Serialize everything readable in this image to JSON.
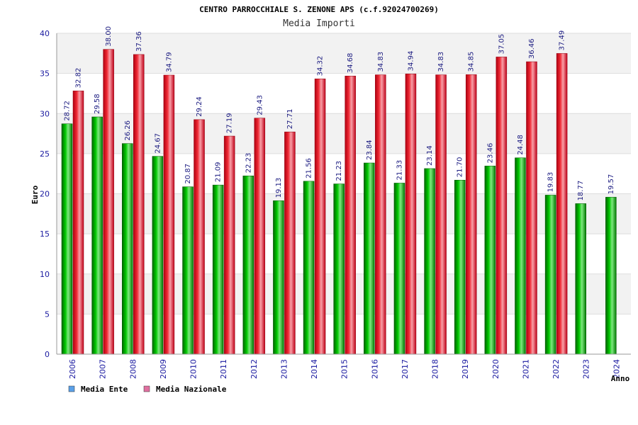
{
  "chart_data": {
    "type": "bar",
    "title": "CENTRO PARROCCHIALE S. ZENONE APS (c.f.92024700269)",
    "subtitle": "Media Importi",
    "xlabel": "Anno",
    "ylabel": "Euro",
    "ylim": [
      0,
      40
    ],
    "yticks": [
      0,
      5,
      10,
      15,
      20,
      25,
      30,
      35,
      40
    ],
    "grid": true,
    "legend_position": "bottom-left",
    "categories": [
      "2006",
      "2007",
      "2008",
      "2009",
      "2010",
      "2011",
      "2012",
      "2013",
      "2014",
      "2015",
      "2016",
      "2017",
      "2018",
      "2019",
      "2020",
      "2021",
      "2022",
      "2023",
      "2024"
    ],
    "series": [
      {
        "name": "Media Ente",
        "color": "#00aa00",
        "legend_color": "#5aa0e8",
        "values": [
          28.72,
          29.58,
          26.26,
          24.67,
          20.87,
          21.09,
          22.23,
          19.13,
          21.56,
          21.23,
          23.84,
          21.33,
          23.14,
          21.7,
          23.46,
          24.48,
          19.83,
          18.77,
          19.57
        ],
        "labels": [
          "28.72",
          "29.58",
          "26.26",
          "24.67",
          "20.87",
          "21.09",
          "22.23",
          "19.13",
          "21.56",
          "21.23",
          "23.84",
          "21.33",
          "23.14",
          "21.70",
          "23.46",
          "24.48",
          "19.83",
          "18.77",
          "19.57"
        ]
      },
      {
        "name": "Media Nazionale",
        "color": "#e8202a",
        "legend_color": "#e070a0",
        "values": [
          32.82,
          38.0,
          37.36,
          34.79,
          29.24,
          27.19,
          29.43,
          27.71,
          34.32,
          34.68,
          34.83,
          34.94,
          34.83,
          34.85,
          37.05,
          36.46,
          37.49,
          null,
          null
        ],
        "labels": [
          "32.82",
          "38.00",
          "37.36",
          "34.79",
          "29.24",
          "27.19",
          "29.43",
          "27.71",
          "34.32",
          "34.68",
          "34.83",
          "34.94",
          "34.83",
          "34.85",
          "37.05",
          "36.46",
          "37.49",
          null,
          null
        ]
      }
    ]
  }
}
